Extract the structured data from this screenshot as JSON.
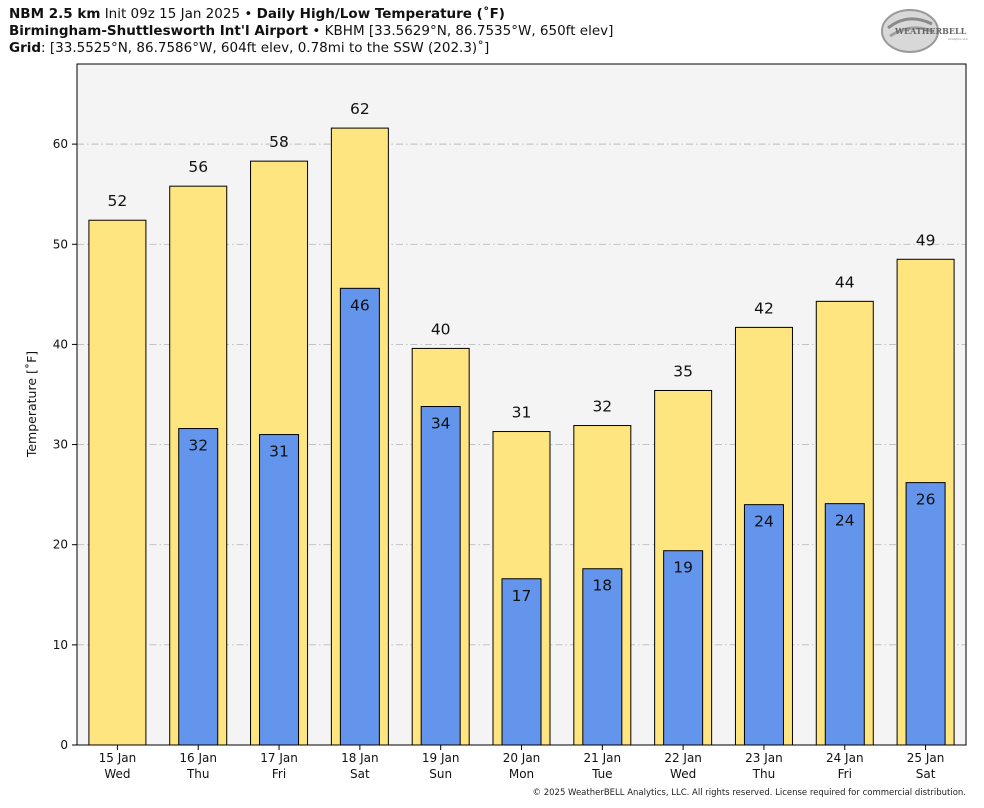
{
  "header": {
    "line1": {
      "model": "NBM 2.5 km",
      "init": "Init 09z 15 Jan 2025",
      "sep": "•",
      "title": "Daily High/Low Temperature (˚F)"
    },
    "line2": {
      "station": "Birmingham-Shuttlesworth Int'l Airport",
      "sep": "•",
      "info": "KBHM [33.5629°N, 86.7535°W, 650ft elev]"
    },
    "line3": {
      "label": "Grid",
      "info": ": [33.5525°N, 86.7586°W, 604ft elev, 0.78mi to the SSW (202.3)˚]"
    }
  },
  "logo": {
    "text": "WEATHERBELL",
    "sub": "Analytics LLC"
  },
  "footer": {
    "text": "© 2025 WeatherBELL Analytics, LLC. All rights reserved. License required for commercial distribution."
  },
  "colors": {
    "high": "#FFE57F",
    "low": "#6495ED",
    "plot_bg": "#F4F4F4",
    "grid": "#BBBBBB"
  },
  "chart_data": {
    "type": "bar",
    "ylabel": "Temperature [˚F]",
    "ylim": [
      0,
      68
    ],
    "yticks": [
      0,
      10,
      20,
      30,
      40,
      50,
      60
    ],
    "grid": true,
    "categories": [
      {
        "date": "15 Jan",
        "day": "Wed"
      },
      {
        "date": "16 Jan",
        "day": "Thu"
      },
      {
        "date": "17 Jan",
        "day": "Fri"
      },
      {
        "date": "18 Jan",
        "day": "Sat"
      },
      {
        "date": "19 Jan",
        "day": "Sun"
      },
      {
        "date": "20 Jan",
        "day": "Mon"
      },
      {
        "date": "21 Jan",
        "day": "Tue"
      },
      {
        "date": "22 Jan",
        "day": "Wed"
      },
      {
        "date": "23 Jan",
        "day": "Thu"
      },
      {
        "date": "24 Jan",
        "day": "Fri"
      },
      {
        "date": "25 Jan",
        "day": "Sat"
      }
    ],
    "high_values": [
      52.4,
      55.8,
      58.3,
      61.6,
      39.6,
      31.3,
      31.9,
      35.4,
      41.7,
      44.3,
      48.5
    ],
    "high_labels": [
      "52",
      "56",
      "58",
      "62",
      "40",
      "31",
      "32",
      "35",
      "42",
      "44",
      "49"
    ],
    "low_values": [
      null,
      31.6,
      31.0,
      45.6,
      33.8,
      16.6,
      17.6,
      19.4,
      24.0,
      24.1,
      26.2
    ],
    "low_labels": [
      "",
      "32",
      "31",
      "46",
      "34",
      "17",
      "18",
      "19",
      "24",
      "24",
      "26"
    ]
  }
}
